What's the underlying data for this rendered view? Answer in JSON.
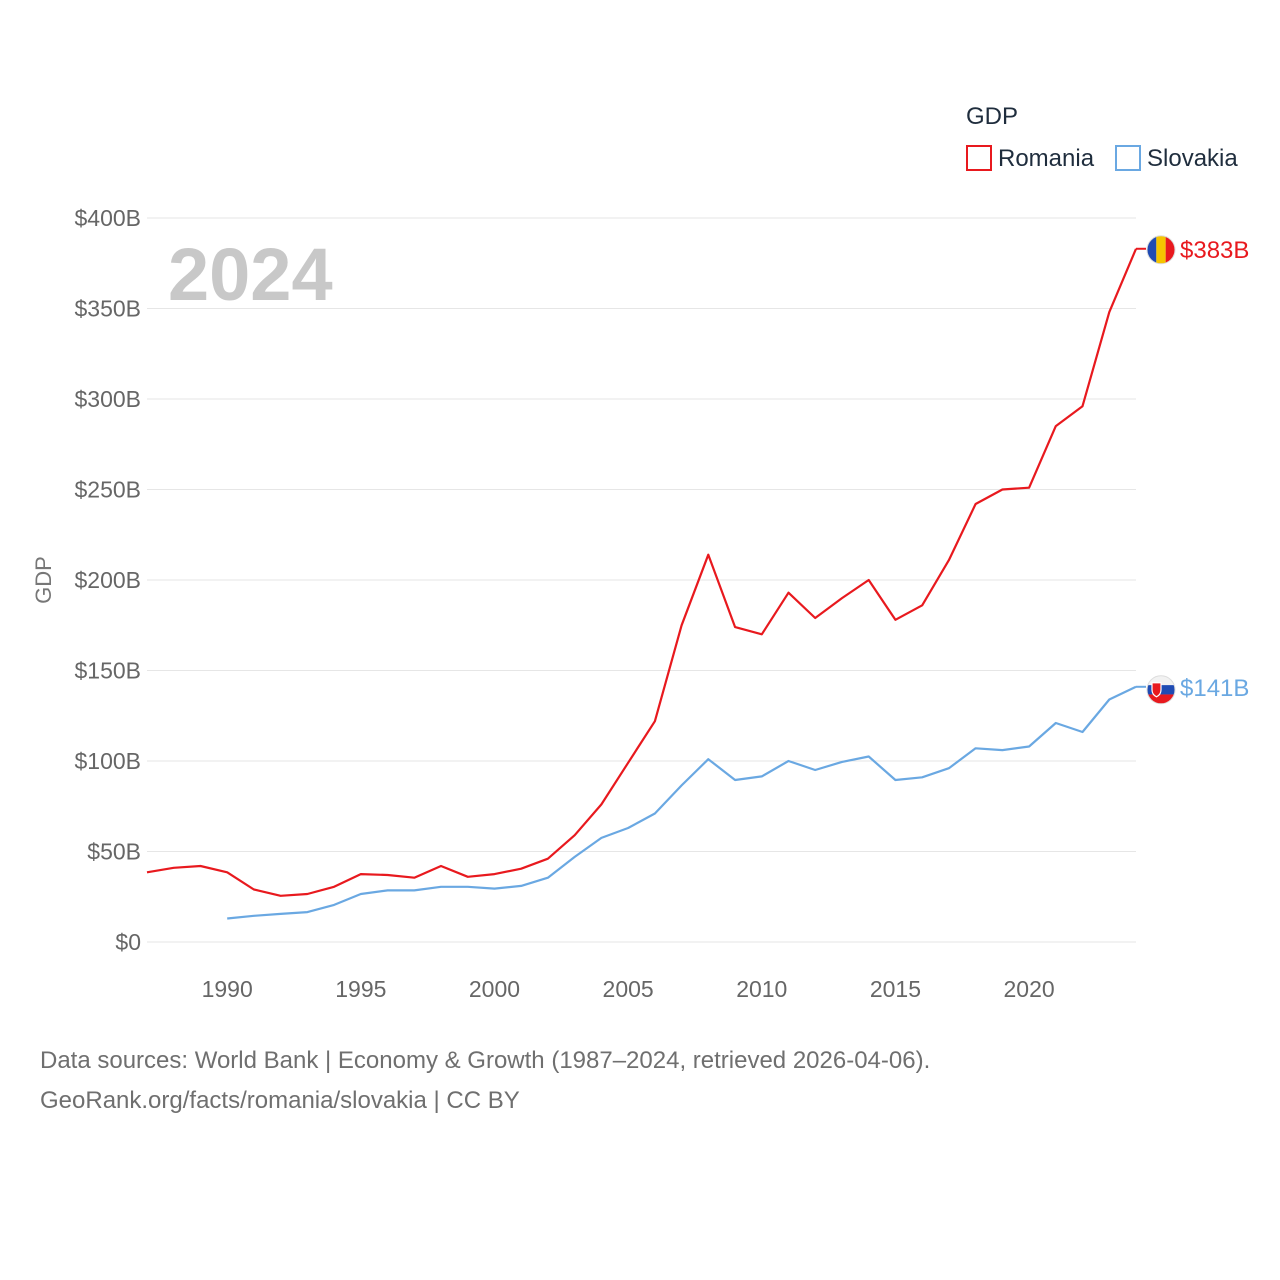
{
  "chart_data": {
    "type": "line",
    "ylabel": "GDP",
    "legend_title": "GDP",
    "legend_position": "top-right",
    "year_watermark": "2024",
    "ylim": [
      0,
      400
    ],
    "xlim": [
      1987,
      2024
    ],
    "y_ticks": [
      0,
      50,
      100,
      150,
      200,
      250,
      300,
      350,
      400
    ],
    "y_tick_labels": [
      "$0",
      "$50B",
      "$100B",
      "$150B",
      "$200B",
      "$250B",
      "$300B",
      "$350B",
      "$400B"
    ],
    "x_ticks": [
      1990,
      1995,
      2000,
      2005,
      2010,
      2015,
      2020
    ],
    "x_tick_labels": [
      "1990",
      "1995",
      "2000",
      "2005",
      "2010",
      "2015",
      "2020"
    ],
    "grid": true,
    "series": [
      {
        "name": "Romania",
        "color": "#e8191e",
        "flag_icon": "romania-flag-icon",
        "end_label": "$383B",
        "x": [
          1987,
          1988,
          1989,
          1990,
          1991,
          1992,
          1993,
          1994,
          1995,
          1996,
          1997,
          1998,
          1999,
          2000,
          2001,
          2002,
          2003,
          2004,
          2005,
          2006,
          2007,
          2008,
          2009,
          2010,
          2011,
          2012,
          2013,
          2014,
          2015,
          2016,
          2017,
          2018,
          2019,
          2020,
          2021,
          2022,
          2023,
          2024
        ],
        "values": [
          38.5,
          41,
          42,
          38.5,
          29,
          25.5,
          26.5,
          30.5,
          37.5,
          37,
          35.5,
          42,
          36,
          37.5,
          40.5,
          46,
          59,
          76,
          99,
          122,
          175,
          214,
          174,
          170,
          193,
          179,
          190,
          200,
          178,
          186,
          211,
          242,
          250,
          251,
          285,
          296,
          348,
          383
        ]
      },
      {
        "name": "Slovakia",
        "color": "#6aa8e2",
        "flag_icon": "slovakia-flag-icon",
        "end_label": "$141B",
        "x": [
          1990,
          1991,
          1992,
          1993,
          1994,
          1995,
          1996,
          1997,
          1998,
          1999,
          2000,
          2001,
          2002,
          2003,
          2004,
          2005,
          2006,
          2007,
          2008,
          2009,
          2010,
          2011,
          2012,
          2013,
          2014,
          2015,
          2016,
          2017,
          2018,
          2019,
          2020,
          2021,
          2022,
          2023,
          2024
        ],
        "values": [
          13,
          14.5,
          15.5,
          16.5,
          20.5,
          26.5,
          28.5,
          28.5,
          30.5,
          30.5,
          29.5,
          31,
          35.5,
          47,
          57.5,
          63,
          71,
          86.5,
          101,
          89.5,
          91.5,
          100,
          95,
          99.5,
          102.5,
          89.5,
          91,
          96,
          107,
          106,
          108,
          121,
          116,
          134,
          141
        ]
      }
    ],
    "source_lines": [
      "Data sources: World Bank | Economy & Growth (1987–2024, retrieved 2026-04-06).",
      "GeoRank.org/facts/romania/slovakia | CC BY"
    ]
  }
}
